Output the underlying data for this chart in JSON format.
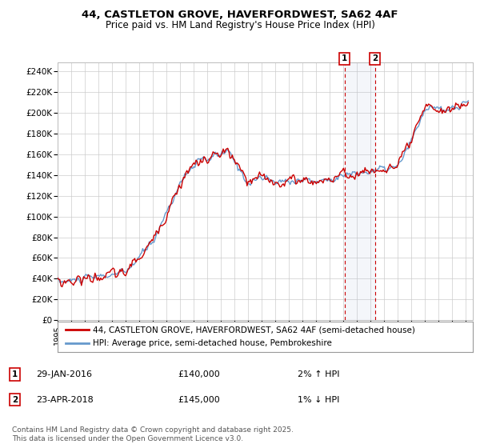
{
  "title_line1": "44, CASTLETON GROVE, HAVERFORDWEST, SA62 4AF",
  "title_line2": "Price paid vs. HM Land Registry's House Price Index (HPI)",
  "ylabel_ticks": [
    "£0",
    "£20K",
    "£40K",
    "£60K",
    "£80K",
    "£100K",
    "£120K",
    "£140K",
    "£160K",
    "£180K",
    "£200K",
    "£220K",
    "£240K"
  ],
  "ytick_values": [
    0,
    20000,
    40000,
    60000,
    80000,
    100000,
    120000,
    140000,
    160000,
    180000,
    200000,
    220000,
    240000
  ],
  "ylim": [
    0,
    248000
  ],
  "xlim_start": 1995.0,
  "xlim_end": 2025.5,
  "hpi_color": "#6699cc",
  "price_color": "#cc0000",
  "marker1_date": 2016.08,
  "marker1_price": 140000,
  "marker1_label": "29-JAN-2016",
  "marker1_value": "£140,000",
  "marker1_note": "2% ↑ HPI",
  "marker2_date": 2018.31,
  "marker2_price": 145000,
  "marker2_label": "23-APR-2018",
  "marker2_value": "£145,000",
  "marker2_note": "1% ↓ HPI",
  "legend_line1": "44, CASTLETON GROVE, HAVERFORDWEST, SA62 4AF (semi-detached house)",
  "legend_line2": "HPI: Average price, semi-detached house, Pembrokeshire",
  "footer": "Contains HM Land Registry data © Crown copyright and database right 2025.\nThis data is licensed under the Open Government Licence v3.0.",
  "background_color": "#ffffff",
  "grid_color": "#cccccc"
}
